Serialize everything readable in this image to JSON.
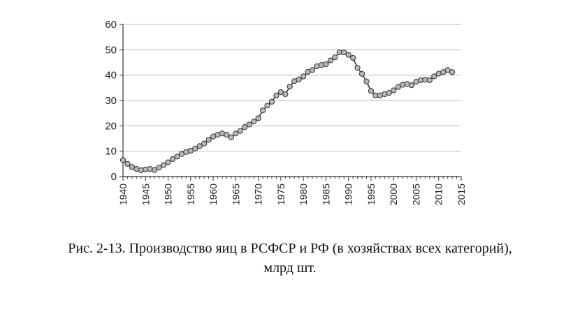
{
  "caption": {
    "line1": "Рис. 2-13. Производство яиц в РСФСР и РФ (в хозяйствах всех категорий),",
    "line2": "млрд шт."
  },
  "chart_data": {
    "type": "line",
    "title": "",
    "xlabel": "",
    "ylabel": "",
    "xlim": [
      1940,
      2015
    ],
    "ylim": [
      0,
      60
    ],
    "x_ticks": [
      "1940",
      "1945",
      "1950",
      "1955",
      "1960",
      "1965",
      "1970",
      "1975",
      "1980",
      "1985",
      "1990",
      "1995",
      "2000",
      "2005",
      "2010",
      "2015"
    ],
    "y_ticks": [
      "0",
      "10",
      "20",
      "30",
      "40",
      "50",
      "60"
    ],
    "grid": "horizontal",
    "legend": "none",
    "colors": {
      "line": "#333333",
      "marker_fill": "#b8b8b8",
      "marker_stroke": "#333333",
      "grid": "#bbbbbb",
      "axis": "#333333"
    },
    "series": [
      {
        "x": [
          1940,
          1941,
          1942,
          1943,
          1944,
          1945,
          1946,
          1947,
          1948,
          1949,
          1950,
          1951,
          1952,
          1953,
          1954,
          1955,
          1956,
          1957,
          1958,
          1959,
          1960,
          1961,
          1962,
          1963,
          1964,
          1965,
          1966,
          1967,
          1968,
          1969,
          1970,
          1971,
          1972,
          1973,
          1974,
          1975,
          1976,
          1977,
          1978,
          1979,
          1980,
          1981,
          1982,
          1983,
          1984,
          1985,
          1986,
          1987,
          1988,
          1989,
          1990,
          1991,
          1992,
          1993,
          1994,
          1995,
          1996,
          1997,
          1998,
          1999,
          2000,
          2001,
          2002,
          2003,
          2004,
          2005,
          2006,
          2007,
          2008,
          2009,
          2010,
          2011,
          2012,
          2013
        ],
        "values": [
          6.5,
          5,
          3.8,
          3,
          2.5,
          2.8,
          3,
          2.6,
          3.5,
          4.5,
          5.6,
          6.9,
          7.9,
          8.9,
          9.7,
          10.2,
          11,
          12,
          13,
          14.5,
          15.8,
          16.5,
          17,
          16.5,
          15.5,
          17,
          18,
          19.5,
          20.5,
          21.7,
          23,
          26.1,
          28,
          29.5,
          32,
          33.3,
          32.5,
          35.5,
          37.6,
          38.3,
          39.5,
          41.3,
          42,
          43.5,
          44,
          44.3,
          45.8,
          47,
          49,
          49,
          48,
          46.8,
          42.9,
          40.5,
          37.5,
          33.8,
          32,
          32,
          32.5,
          33,
          34,
          35.3,
          36.2,
          36.5,
          36,
          37.4,
          38,
          38.2,
          38,
          39.5,
          40.6,
          41.2,
          42,
          41.2
        ]
      }
    ]
  }
}
